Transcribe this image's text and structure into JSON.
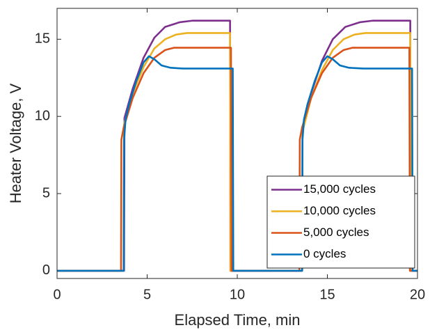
{
  "chart_data": {
    "type": "line",
    "x_label": "Elapsed Time, min",
    "y_label": "Heater Voltage, V",
    "xlim": [
      0,
      20
    ],
    "ylim": [
      -0.5,
      17
    ],
    "xticks": [
      0,
      5,
      10,
      15,
      20
    ],
    "yticks": [
      0,
      5,
      10,
      15
    ],
    "legend": "lower right",
    "series": [
      {
        "name": "15,000 cycles",
        "color": "#7e2f8e",
        "x": [
          0,
          3.72,
          3.74,
          4.2,
          4.8,
          5.4,
          6,
          6.8,
          7.5,
          9.6,
          9.62,
          13.6,
          13.62,
          14.1,
          14.7,
          15.3,
          16,
          16.8,
          17.5,
          19.6,
          19.62,
          20
        ],
        "values": [
          0,
          0,
          9.9,
          11.8,
          13.8,
          15.1,
          15.8,
          16.1,
          16.2,
          16.2,
          0,
          0,
          9.3,
          11.5,
          13.6,
          15.0,
          15.8,
          16.1,
          16.2,
          16.2,
          0,
          0
        ]
      },
      {
        "name": "10,000 cycles",
        "color": "#edb120",
        "x": [
          0,
          3.7,
          3.72,
          4.2,
          4.8,
          5.4,
          6,
          6.6,
          7.2,
          9.6,
          9.62,
          13.6,
          13.62,
          14.1,
          14.7,
          15.3,
          15.9,
          16.5,
          17.1,
          19.6,
          19.62,
          20
        ],
        "values": [
          0,
          0,
          9.5,
          11.5,
          13.2,
          14.4,
          15.0,
          15.3,
          15.4,
          15.4,
          0,
          0,
          9.0,
          11.2,
          13.0,
          14.3,
          15.0,
          15.3,
          15.4,
          15.4,
          0,
          0
        ]
      },
      {
        "name": "5,000 cycles",
        "color": "#d95319",
        "x": [
          0,
          3.55,
          3.57,
          3.7,
          4.2,
          4.8,
          5.4,
          6,
          6.5,
          7,
          9.65,
          9.68,
          13.45,
          13.47,
          13.6,
          14.1,
          14.7,
          15.3,
          15.9,
          16.4,
          17,
          19.55,
          19.58,
          20
        ],
        "values": [
          0,
          0,
          8.5,
          9.3,
          11.2,
          12.8,
          13.8,
          14.3,
          14.45,
          14.45,
          14.45,
          0,
          0,
          8.5,
          9.3,
          11.2,
          12.8,
          13.8,
          14.3,
          14.45,
          14.45,
          14.45,
          0,
          0
        ]
      },
      {
        "name": "0 cycles",
        "color": "#0072bd",
        "x": [
          0,
          3.7,
          3.72,
          3.8,
          4.0,
          4.4,
          4.8,
          5.1,
          5.4,
          5.8,
          6.3,
          7,
          9.75,
          9.78,
          13.6,
          13.62,
          13.7,
          13.9,
          14.3,
          14.7,
          15.0,
          15.3,
          15.7,
          16.2,
          17,
          19.7,
          19.73,
          20
        ],
        "values": [
          0,
          0,
          8.5,
          9.8,
          10.8,
          12.3,
          13.5,
          13.9,
          13.7,
          13.3,
          13.15,
          13.1,
          13.1,
          0,
          0,
          8.5,
          9.8,
          10.8,
          12.3,
          13.5,
          13.9,
          13.7,
          13.3,
          13.15,
          13.1,
          13.1,
          0,
          0
        ]
      }
    ]
  }
}
